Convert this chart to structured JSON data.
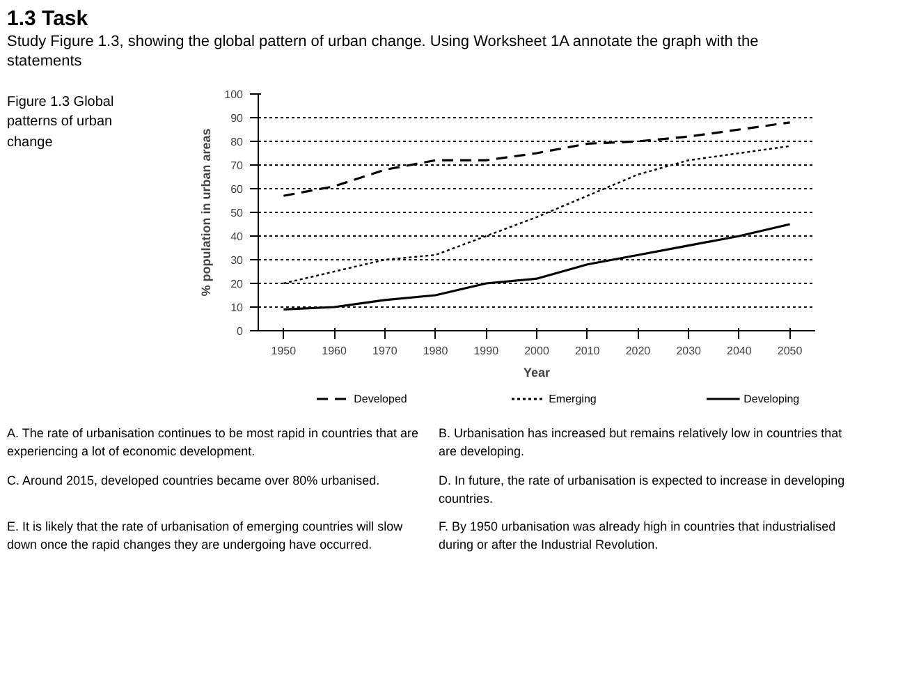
{
  "chart_data": {
    "type": "line",
    "title": "1.3 Task",
    "subtitle": "Study Figure 1.3, showing the global pattern of urban change. Using Worksheet 1A annotate the graph with the statements",
    "xlabel": "Year",
    "ylabel": "% population in urban areas",
    "x": [
      1950,
      1960,
      1970,
      1980,
      1990,
      2000,
      2010,
      2020,
      2030,
      2040,
      2050
    ],
    "xlim": [
      1945,
      2055
    ],
    "xticks": [
      1950,
      1960,
      1970,
      1980,
      1990,
      2000,
      2010,
      2020,
      2030,
      2040,
      2050
    ],
    "ylim": [
      0,
      100
    ],
    "yticks": [
      0,
      10,
      20,
      30,
      40,
      50,
      60,
      70,
      80,
      90,
      100
    ],
    "grid": "y",
    "legend": "bottom",
    "series": [
      {
        "name": "Developed",
        "color": "#000000",
        "line_style": "dashed",
        "values": [
          57,
          61,
          68,
          72,
          72,
          75,
          79,
          80,
          82,
          85,
          88
        ]
      },
      {
        "name": "Emerging",
        "color": "#000000",
        "line_style": "dotted",
        "values": [
          20,
          25,
          30,
          32,
          40,
          48,
          57,
          66,
          72,
          75,
          78
        ]
      },
      {
        "name": "Developing",
        "color": "#000000",
        "line_style": "solid",
        "values": [
          9,
          10,
          13,
          15,
          20,
          22,
          28,
          32,
          36,
          40,
          45
        ]
      }
    ],
    "annotations": [
      "Figure 1.3 Global patterns of urban change",
      "A. The rate of urbanisation continues to be most rapid in countries that are experiencing a lot of economic development.",
      "B. Urbanisation has increased but remains relatively low in countries that are developing.",
      "C. Around 2015, developed countries became over 80% urbanised.",
      "D. In future, the rate of urbanisation is expected to increase in developing countries.",
      "E. It is likely that the rate of urbanisation of emerging countries will slow down once the rapid changes they are undergoing have occurred.",
      "F. By 1950 urbanisation was already high in countries that industrialised during or after the Industrial Revolution."
    ]
  }
}
